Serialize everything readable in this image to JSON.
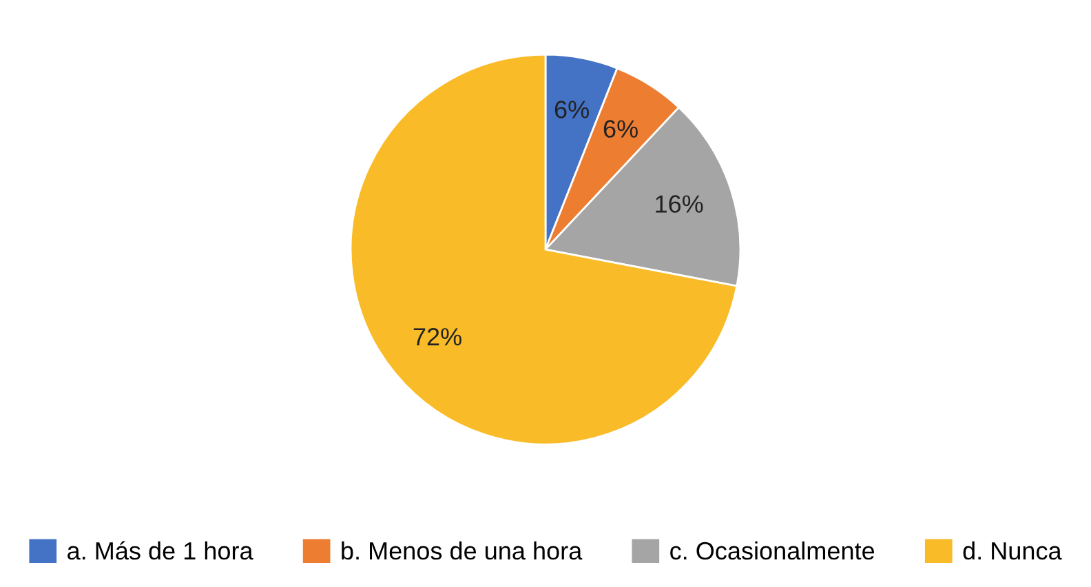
{
  "chart_data": {
    "type": "pie",
    "categories": [
      "a. Más de 1 hora",
      "b. Menos de una hora",
      "c. Ocasionalmente",
      "d. Nunca"
    ],
    "values": [
      6,
      6,
      16,
      72
    ],
    "colors": [
      "#4472c4",
      "#ed7d31",
      "#a5a5a5",
      "#f9bb28"
    ],
    "value_labels": [
      "6%",
      "6%",
      "16%",
      "72%"
    ],
    "legend": "bottom"
  }
}
